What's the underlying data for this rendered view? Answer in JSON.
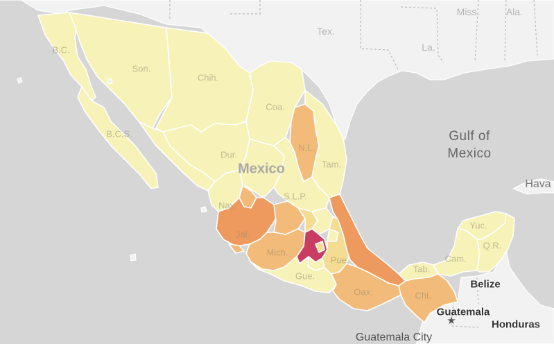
{
  "map": {
    "us_states": [
      "Tex.",
      "La.",
      "Miss.",
      "Ala."
    ],
    "sea_label_lines": [
      "Gulf of",
      "Mexico"
    ],
    "country_label": "Mexico",
    "neighbors": [
      "Belize",
      "Guatemala",
      "Honduras",
      "Hava"
    ],
    "city_label": "Guatemala City",
    "state_labels": [
      "B.C.",
      "Son.",
      "Chih.",
      "Coa.",
      "B.C.S.",
      "Dur.",
      "N.L.",
      "Tam.",
      "S.L.P.",
      "Nay.",
      "Jal.",
      "Mich.",
      "Gue.",
      "Pue.",
      "Oax.",
      "Chi.",
      "Tab.",
      "Cam.",
      "Yuc.",
      "Q.R."
    ],
    "color_scale": {
      "lowest": "#f7f2b8",
      "low": "#f5dc93",
      "mid": "#f2bb7a",
      "high": "#ee9a5f",
      "highest": "#c93d63"
    }
  }
}
